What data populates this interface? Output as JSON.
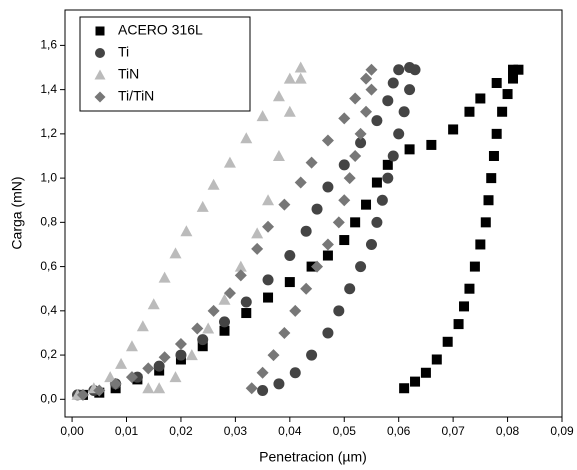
{
  "chart_data": {
    "type": "scatter",
    "x_label": "Penetracion (µm)",
    "y_label": "Carga (mN)",
    "xlim": [
      -0.0013,
      0.09
    ],
    "ylim": [
      -0.08,
      1.76
    ],
    "xticks": [
      {
        "value": 0,
        "label": "0,00"
      },
      {
        "value": 0.01,
        "label": "0,01"
      },
      {
        "value": 0.02,
        "label": "0,02"
      },
      {
        "value": 0.03,
        "label": "0,03"
      },
      {
        "value": 0.04,
        "label": "0,04"
      },
      {
        "value": 0.05,
        "label": "0,05"
      },
      {
        "value": 0.06,
        "label": "0,06"
      },
      {
        "value": 0.07,
        "label": "0,07"
      },
      {
        "value": 0.08,
        "label": "0,08"
      },
      {
        "value": 0.09,
        "label": "0,09"
      }
    ],
    "yticks": [
      {
        "value": 0,
        "label": "0,0"
      },
      {
        "value": 0.2,
        "label": "0,2"
      },
      {
        "value": 0.4,
        "label": "0,4"
      },
      {
        "value": 0.6,
        "label": "0,6"
      },
      {
        "value": 0.8,
        "label": "0,8"
      },
      {
        "value": 1.0,
        "label": "1,0"
      },
      {
        "value": 1.2,
        "label": "1,2"
      },
      {
        "value": 1.4,
        "label": "1,4"
      },
      {
        "value": 1.6,
        "label": "1,6"
      }
    ],
    "legend": "top-left",
    "series": [
      {
        "name": "ACERO 316L",
        "color": "#000000",
        "marker": "square",
        "x": [
          0.002,
          0.005,
          0.008,
          0.012,
          0.016,
          0.02,
          0.024,
          0.028,
          0.032,
          0.036,
          0.04,
          0.044,
          0.047,
          0.05,
          0.052,
          0.054,
          0.056,
          0.058,
          0.062,
          0.066,
          0.07,
          0.073,
          0.075,
          0.078,
          0.081,
          0.082,
          0.081,
          0.08,
          0.079,
          0.078,
          0.0775,
          0.077,
          0.0765,
          0.076,
          0.075,
          0.074,
          0.073,
          0.072,
          0.071,
          0.069,
          0.067,
          0.065,
          0.063,
          0.061
        ],
        "values": [
          0.02,
          0.03,
          0.05,
          0.09,
          0.13,
          0.18,
          0.24,
          0.31,
          0.39,
          0.46,
          0.53,
          0.6,
          0.65,
          0.72,
          0.8,
          0.88,
          0.98,
          1.06,
          1.13,
          1.15,
          1.22,
          1.3,
          1.36,
          1.43,
          1.49,
          1.49,
          1.45,
          1.38,
          1.3,
          1.2,
          1.1,
          1.0,
          0.9,
          0.8,
          0.7,
          0.6,
          0.5,
          0.42,
          0.34,
          0.26,
          0.18,
          0.12,
          0.08,
          0.05
        ]
      },
      {
        "name": "Ti",
        "color": "#444444",
        "marker": "circle",
        "x": [
          0.001,
          0.004,
          0.008,
          0.012,
          0.016,
          0.02,
          0.024,
          0.028,
          0.032,
          0.036,
          0.04,
          0.043,
          0.045,
          0.047,
          0.05,
          0.053,
          0.056,
          0.058,
          0.059,
          0.06,
          0.062,
          0.063,
          0.062,
          0.061,
          0.06,
          0.059,
          0.058,
          0.057,
          0.056,
          0.055,
          0.053,
          0.051,
          0.049,
          0.047,
          0.044,
          0.041,
          0.038,
          0.035
        ],
        "values": [
          0.02,
          0.04,
          0.07,
          0.1,
          0.15,
          0.2,
          0.27,
          0.35,
          0.44,
          0.54,
          0.65,
          0.76,
          0.86,
          0.96,
          1.06,
          1.16,
          1.26,
          1.35,
          1.43,
          1.49,
          1.5,
          1.49,
          1.4,
          1.3,
          1.2,
          1.1,
          1.0,
          0.9,
          0.8,
          0.7,
          0.6,
          0.5,
          0.4,
          0.3,
          0.2,
          0.12,
          0.07,
          0.04
        ]
      },
      {
        "name": "TiN",
        "color": "#bbbbbb",
        "marker": "triangle",
        "x": [
          0.001,
          0.004,
          0.007,
          0.009,
          0.011,
          0.013,
          0.015,
          0.017,
          0.019,
          0.021,
          0.024,
          0.026,
          0.029,
          0.032,
          0.035,
          0.038,
          0.04,
          0.042,
          0.042,
          0.04,
          0.038,
          0.036,
          0.034,
          0.031,
          0.028,
          0.025,
          0.022,
          0.019,
          0.016,
          0.014
        ],
        "values": [
          0.02,
          0.05,
          0.1,
          0.16,
          0.24,
          0.33,
          0.43,
          0.55,
          0.66,
          0.76,
          0.87,
          0.97,
          1.07,
          1.18,
          1.28,
          1.37,
          1.45,
          1.5,
          1.45,
          1.3,
          1.1,
          0.9,
          0.75,
          0.6,
          0.45,
          0.32,
          0.2,
          0.1,
          0.05,
          0.05
        ]
      },
      {
        "name": "Ti/TiN",
        "color": "#777777",
        "marker": "diamond",
        "x": [
          0.002,
          0.005,
          0.008,
          0.011,
          0.014,
          0.017,
          0.02,
          0.023,
          0.026,
          0.029,
          0.031,
          0.034,
          0.036,
          0.039,
          0.042,
          0.044,
          0.047,
          0.05,
          0.052,
          0.054,
          0.055,
          0.055,
          0.054,
          0.053,
          0.052,
          0.051,
          0.05,
          0.049,
          0.047,
          0.045,
          0.043,
          0.041,
          0.039,
          0.037,
          0.035,
          0.033
        ],
        "values": [
          0.02,
          0.04,
          0.07,
          0.1,
          0.14,
          0.19,
          0.25,
          0.32,
          0.4,
          0.48,
          0.56,
          0.68,
          0.78,
          0.88,
          0.98,
          1.07,
          1.17,
          1.27,
          1.36,
          1.45,
          1.49,
          1.4,
          1.3,
          1.2,
          1.1,
          1.0,
          0.9,
          0.8,
          0.7,
          0.6,
          0.5,
          0.4,
          0.3,
          0.2,
          0.12,
          0.05
        ]
      }
    ]
  }
}
